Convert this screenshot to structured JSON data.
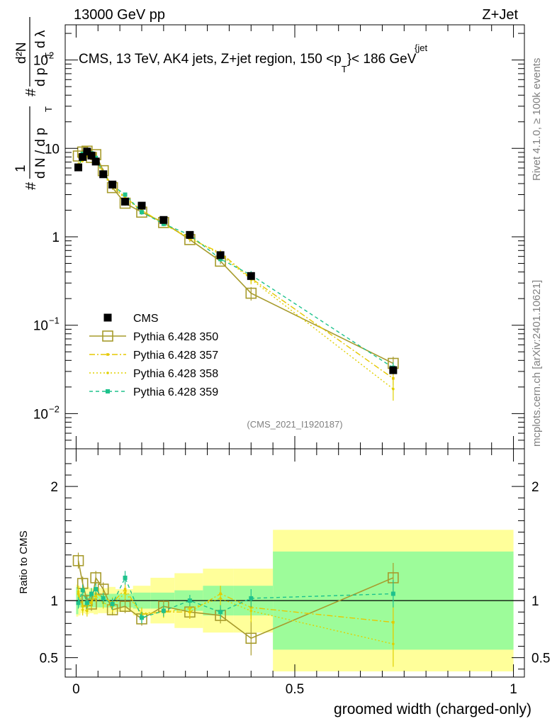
{
  "header": {
    "left": "13000 GeV pp",
    "right": "Z+Jet"
  },
  "side": {
    "rivet": "Rivet 4.1.0, ≥ 100k events",
    "mcplots": "mcplots.cern.ch [arXiv:2401.10621]"
  },
  "colors": {
    "cms": "#000000",
    "py350": "#a79b2c",
    "py357": "#e6c800",
    "py358": "#e0d000",
    "py359": "#1ec28c",
    "band_green": "#9dfc9a",
    "band_yellow": "#ffff9a"
  },
  "chart_data": {
    "type": "line",
    "title": "CMS, 13 TeV, AK4 jets, Z+jet region, 150 <p_T^{jet}< 186 GeV",
    "title_parts": {
      "lead": "CMS, 13 TeV, AK4 jets, Z+jet region, 150 <p",
      "sup": "{jet",
      "sub": "T",
      "tail": "}< 186 GeV"
    },
    "ylabel_parts": {
      "hash": "#",
      "frac_one": "1",
      "dN": "d N / d p",
      "T": "T",
      "hash2": "#",
      "num": "d²N",
      "den": "d p",
      "den_T": "T",
      "dlambda": "d λ"
    },
    "xlabel": "groomed width (charged-only)",
    "ratio_ylabel": "Ratio to CMS",
    "watermark": "(CMS_2021_I1920187)",
    "xlim": [
      -0.025,
      1.025
    ],
    "ylim_log": [
      0.004,
      250
    ],
    "ratio_ylim": [
      0.33,
      2.33
    ],
    "main_ticks": [
      {
        "value": 0.01,
        "label": "10",
        "exp": "−2"
      },
      {
        "value": 0.1,
        "label": "10",
        "exp": "−1"
      },
      {
        "value": 1,
        "label": "1",
        "exp": ""
      },
      {
        "value": 10,
        "label": "10",
        "exp": ""
      },
      {
        "value": 100,
        "label": "10",
        "exp": "2"
      }
    ],
    "ratio_ticks": [
      {
        "value": 0.5,
        "label": "0.5"
      },
      {
        "value": 1,
        "label": "1"
      },
      {
        "value": 2,
        "label": "2"
      }
    ],
    "x_ticks": [
      {
        "value": 0,
        "label": "0"
      },
      {
        "value": 0.5,
        "label": "0.5"
      },
      {
        "value": 1,
        "label": "1"
      }
    ],
    "x": [
      0.005,
      0.015,
      0.025,
      0.035,
      0.045,
      0.062,
      0.083,
      0.112,
      0.15,
      0.2,
      0.26,
      0.33,
      0.4,
      0.725
    ],
    "bin_edges": [
      0,
      0.01,
      0.02,
      0.03,
      0.04,
      0.05,
      0.075,
      0.09,
      0.13,
      0.17,
      0.225,
      0.29,
      0.36,
      0.45,
      1.0
    ],
    "series": [
      {
        "name": "CMS",
        "style": "cms",
        "values": [
          6.1,
          8.0,
          9.2,
          8.3,
          7.1,
          5.1,
          3.9,
          2.5,
          2.25,
          1.55,
          1.05,
          0.62,
          0.36,
          0.031
        ],
        "errors": [
          0.3,
          0.3,
          0.3,
          0.3,
          0.3,
          0.2,
          0.15,
          0.12,
          0.1,
          0.08,
          0.05,
          0.04,
          0.03,
          0.003
        ]
      },
      {
        "name": "Pythia 6.428 350",
        "style": "py350",
        "values": [
          8.2,
          9.1,
          9.3,
          7.9,
          8.5,
          5.6,
          3.6,
          2.4,
          1.9,
          1.45,
          0.93,
          0.53,
          0.23,
          0.037
        ],
        "errors": [
          0.5,
          0.5,
          0.5,
          0.5,
          0.5,
          0.3,
          0.2,
          0.15,
          0.12,
          0.08,
          0.06,
          0.04,
          0.04,
          0.007
        ]
      },
      {
        "name": "Pythia 6.428 357",
        "style": "py357",
        "values": [
          6.5,
          7.5,
          8.7,
          8.0,
          7.6,
          5.3,
          3.8,
          2.8,
          2.0,
          1.4,
          0.95,
          0.66,
          0.34,
          0.025
        ],
        "errors": [
          0.4,
          0.4,
          0.4,
          0.4,
          0.4,
          0.3,
          0.2,
          0.15,
          0.12,
          0.08,
          0.06,
          0.05,
          0.04,
          0.004
        ]
      },
      {
        "name": "Pythia 6.428 358",
        "style": "py358",
        "values": [
          6.6,
          7.3,
          8.4,
          8.4,
          7.4,
          5.0,
          3.7,
          2.7,
          2.0,
          1.4,
          0.98,
          0.63,
          0.33,
          0.019
        ],
        "errors": [
          0.4,
          0.4,
          0.4,
          0.4,
          0.4,
          0.3,
          0.2,
          0.15,
          0.12,
          0.08,
          0.06,
          0.05,
          0.04,
          0.005
        ]
      },
      {
        "name": "Pythia 6.428 359",
        "style": "py359",
        "values": [
          5.9,
          8.7,
          9.0,
          8.8,
          7.8,
          5.2,
          3.8,
          3.0,
          1.9,
          1.4,
          1.05,
          0.56,
          0.37,
          0.033
        ],
        "errors": [
          0.3,
          0.4,
          0.4,
          0.4,
          0.4,
          0.3,
          0.2,
          0.15,
          0.12,
          0.08,
          0.06,
          0.04,
          0.04,
          0.005
        ]
      }
    ],
    "ratio_band_edges": [
      0,
      0.005,
      0.01,
      0.02,
      0.03,
      0.04,
      0.05,
      0.075,
      0.09,
      0.13,
      0.17,
      0.225,
      0.29,
      0.36,
      0.45,
      1.0
    ],
    "ratio_band_green": [
      0.12,
      0.06,
      0.06,
      0.06,
      0.06,
      0.06,
      0.06,
      0.06,
      0.06,
      0.07,
      0.07,
      0.09,
      0.13,
      0.13,
      0.43
    ],
    "ratio_band_yellow": [
      0.14,
      0.13,
      0.11,
      0.12,
      0.11,
      0.12,
      0.11,
      0.12,
      0.1,
      0.13,
      0.2,
      0.24,
      0.28,
      0.28,
      0.62
    ],
    "ratio_series": [
      {
        "name": "Pythia 6.428 350",
        "style": "py350",
        "values": [
          1.35,
          1.15,
          1.0,
          0.97,
          1.2,
          1.1,
          0.92,
          0.95,
          0.84,
          0.95,
          0.9,
          0.87,
          0.67,
          1.2
        ],
        "errors": [
          0.07,
          0.06,
          0.05,
          0.06,
          0.06,
          0.06,
          0.05,
          0.06,
          0.06,
          0.05,
          0.06,
          0.07,
          0.15,
          0.13
        ]
      },
      {
        "name": "Pythia 6.428 357",
        "style": "py357",
        "values": [
          1.06,
          0.95,
          0.95,
          0.98,
          1.06,
          1.03,
          0.98,
          1.1,
          0.88,
          0.9,
          0.9,
          1.06,
          0.94,
          0.81
        ],
        "errors": [
          0.05,
          0.05,
          0.05,
          0.05,
          0.05,
          0.05,
          0.05,
          0.06,
          0.05,
          0.05,
          0.06,
          0.07,
          0.1,
          0.15
        ]
      },
      {
        "name": "Pythia 6.428 358",
        "style": "py358",
        "values": [
          1.08,
          0.92,
          0.91,
          1.02,
          1.04,
          0.98,
          0.95,
          1.07,
          0.89,
          0.9,
          0.93,
          1.02,
          0.91,
          0.62
        ],
        "errors": [
          0.05,
          0.05,
          0.05,
          0.05,
          0.05,
          0.05,
          0.05,
          0.06,
          0.05,
          0.05,
          0.06,
          0.07,
          0.1,
          0.2
        ]
      },
      {
        "name": "Pythia 6.428 359",
        "style": "py359",
        "values": [
          0.98,
          1.09,
          0.98,
          1.06,
          1.1,
          1.02,
          0.97,
          1.2,
          0.85,
          0.91,
          1.0,
          0.9,
          1.02,
          1.06
        ],
        "errors": [
          0.05,
          0.05,
          0.05,
          0.05,
          0.05,
          0.05,
          0.05,
          0.06,
          0.05,
          0.05,
          0.05,
          0.06,
          0.08,
          0.12
        ]
      }
    ]
  }
}
